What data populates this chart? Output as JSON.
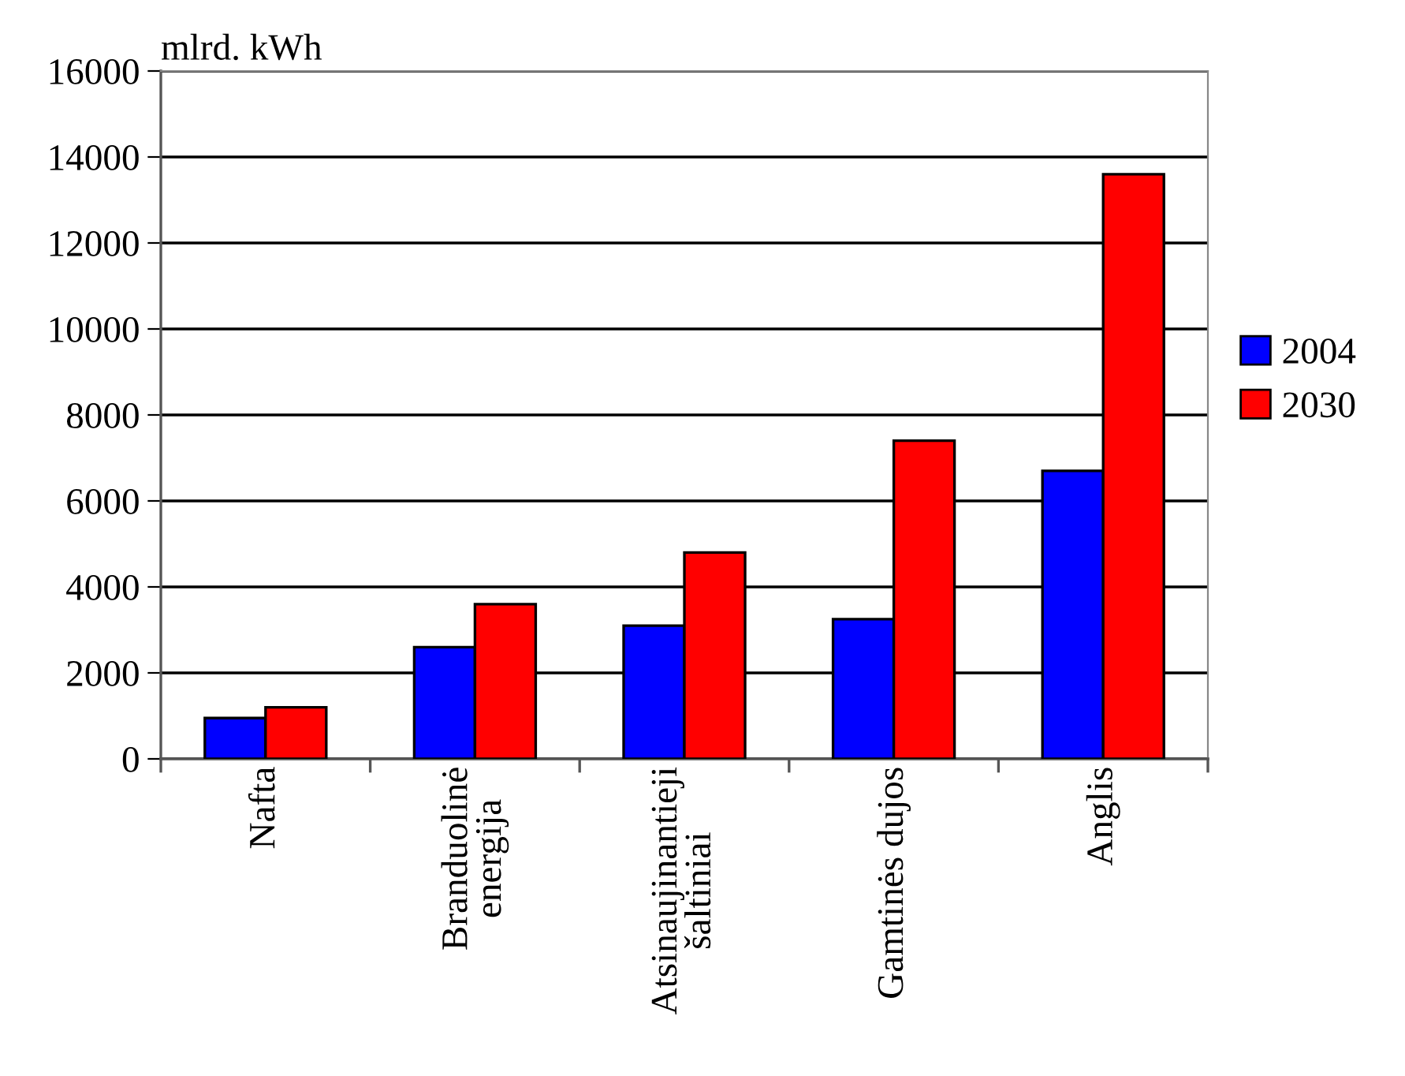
{
  "chart_data": {
    "type": "bar",
    "ylabel": "mlrd. kWh",
    "categories": [
      "Nafta",
      "Branduolinė\nenergija",
      "Atsinaujinantieji\nšaltiniai",
      "Gamtinės dujos",
      "Anglis"
    ],
    "series": [
      {
        "name": "2004",
        "color": "#0000ff",
        "values": [
          950,
          2600,
          3100,
          3250,
          6700
        ]
      },
      {
        "name": "2030",
        "color": "#ff0000",
        "values": [
          1200,
          3600,
          4800,
          7400,
          13600
        ]
      }
    ],
    "ylim": [
      0,
      16000
    ],
    "yticks": [
      0,
      2000,
      4000,
      6000,
      8000,
      10000,
      12000,
      14000,
      16000
    ],
    "grid": "y",
    "legend": "right"
  }
}
